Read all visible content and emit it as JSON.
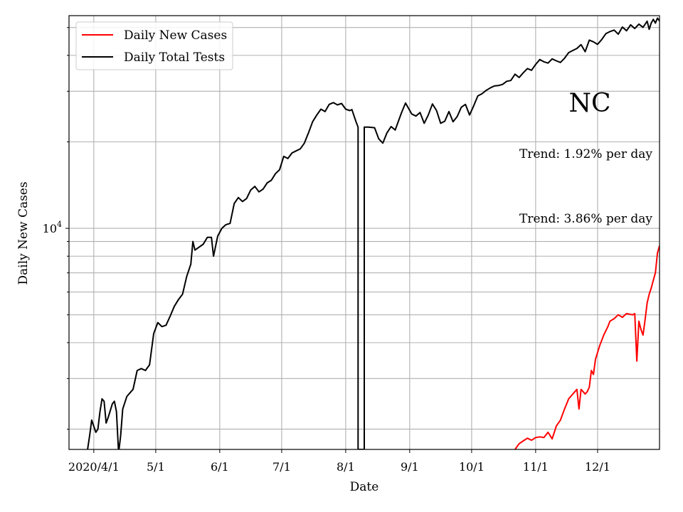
{
  "chart_data": {
    "type": "line",
    "region_label": "NC",
    "xlabel": "Date",
    "ylabel": "Daily New Cases",
    "x_tick_labels": [
      {
        "date": "2020-04-01",
        "label": "2020/4/1"
      },
      {
        "date": "2020-05-01",
        "label": "5/1"
      },
      {
        "date": "2020-06-01",
        "label": "6/1"
      },
      {
        "date": "2020-07-01",
        "label": "7/1"
      },
      {
        "date": "2020-08-01",
        "label": "8/1"
      },
      {
        "date": "2020-09-01",
        "label": "9/1"
      },
      {
        "date": "2020-10-01",
        "label": "10/1"
      },
      {
        "date": "2020-11-01",
        "label": "11/1"
      },
      {
        "date": "2020-12-01",
        "label": "12/1"
      }
    ],
    "xlim": [
      "2020-03-20",
      "2020-12-31"
    ],
    "y_scale": "log",
    "ylim": [
      1700,
      55000
    ],
    "y_major_tick": {
      "value": 10000,
      "label_base": "10",
      "label_exp": "4"
    },
    "grid": true,
    "legend": {
      "location": "top-left",
      "entries": [
        "Daily New Cases",
        "Daily Total Tests"
      ]
    },
    "annotations": [
      "Trend: 1.92% per day",
      "Trend: 3.86% per day"
    ],
    "series": [
      {
        "name": "Daily New Cases",
        "color": "#ff0000",
        "points": [
          [
            "2020-10-22",
            1700
          ],
          [
            "2020-10-24",
            1780
          ],
          [
            "2020-10-26",
            1820
          ],
          [
            "2020-10-28",
            1860
          ],
          [
            "2020-10-30",
            1830
          ],
          [
            "2020-11-01",
            1870
          ],
          [
            "2020-11-03",
            1880
          ],
          [
            "2020-11-05",
            1870
          ],
          [
            "2020-11-07",
            1950
          ],
          [
            "2020-11-09",
            1850
          ],
          [
            "2020-11-11",
            2050
          ],
          [
            "2020-11-13",
            2150
          ],
          [
            "2020-11-15",
            2350
          ],
          [
            "2020-11-17",
            2550
          ],
          [
            "2020-11-19",
            2650
          ],
          [
            "2020-11-21",
            2750
          ],
          [
            "2020-11-22",
            2350
          ],
          [
            "2020-11-23",
            2750
          ],
          [
            "2020-11-25",
            2650
          ],
          [
            "2020-11-26",
            2700
          ],
          [
            "2020-11-27",
            2800
          ],
          [
            "2020-11-28",
            3200
          ],
          [
            "2020-11-29",
            3100
          ],
          [
            "2020-11-30",
            3500
          ],
          [
            "2020-12-02",
            3900
          ],
          [
            "2020-12-04",
            4250
          ],
          [
            "2020-12-06",
            4550
          ],
          [
            "2020-12-07",
            4750
          ],
          [
            "2020-12-09",
            4850
          ],
          [
            "2020-12-11",
            5000
          ],
          [
            "2020-12-13",
            4900
          ],
          [
            "2020-12-15",
            5050
          ],
          [
            "2020-12-18",
            5000
          ],
          [
            "2020-12-19",
            5050
          ],
          [
            "2020-12-20",
            3450
          ],
          [
            "2020-12-21",
            4750
          ],
          [
            "2020-12-22",
            4450
          ],
          [
            "2020-12-23",
            4250
          ],
          [
            "2020-12-24",
            4800
          ],
          [
            "2020-12-25",
            5500
          ],
          [
            "2020-12-26",
            5900
          ],
          [
            "2020-12-27",
            6200
          ],
          [
            "2020-12-28",
            6600
          ],
          [
            "2020-12-29",
            7000
          ],
          [
            "2020-12-30",
            8200
          ],
          [
            "2020-12-31",
            8700
          ]
        ]
      },
      {
        "name": "Daily Total Tests",
        "color": "#000000",
        "points": [
          [
            "2020-03-29",
            1700
          ],
          [
            "2020-03-30",
            1900
          ],
          [
            "2020-03-31",
            2150
          ],
          [
            "2020-04-02",
            1950
          ],
          [
            "2020-04-03",
            2000
          ],
          [
            "2020-04-04",
            2300
          ],
          [
            "2020-04-05",
            2550
          ],
          [
            "2020-04-06",
            2500
          ],
          [
            "2020-04-07",
            2100
          ],
          [
            "2020-04-08",
            2200
          ],
          [
            "2020-04-10",
            2450
          ],
          [
            "2020-04-11",
            2500
          ],
          [
            "2020-04-12",
            2300
          ],
          [
            "2020-04-13",
            1650
          ],
          [
            "2020-04-14",
            1900
          ],
          [
            "2020-04-15",
            2350
          ],
          [
            "2020-04-17",
            2600
          ],
          [
            "2020-04-19",
            2700
          ],
          [
            "2020-04-20",
            2750
          ],
          [
            "2020-04-22",
            3200
          ],
          [
            "2020-04-24",
            3250
          ],
          [
            "2020-04-26",
            3200
          ],
          [
            "2020-04-28",
            3350
          ],
          [
            "2020-04-30",
            4300
          ],
          [
            "2020-05-02",
            4700
          ],
          [
            "2020-05-04",
            4550
          ],
          [
            "2020-05-06",
            4600
          ],
          [
            "2020-05-08",
            4950
          ],
          [
            "2020-05-10",
            5350
          ],
          [
            "2020-05-12",
            5650
          ],
          [
            "2020-05-14",
            5900
          ],
          [
            "2020-05-16",
            6800
          ],
          [
            "2020-05-18",
            7500
          ],
          [
            "2020-05-19",
            9000
          ],
          [
            "2020-05-20",
            8400
          ],
          [
            "2020-05-22",
            8600
          ],
          [
            "2020-05-24",
            8800
          ],
          [
            "2020-05-26",
            9300
          ],
          [
            "2020-05-28",
            9300
          ],
          [
            "2020-05-29",
            8000
          ],
          [
            "2020-05-31",
            9400
          ],
          [
            "2020-06-02",
            10000
          ],
          [
            "2020-06-04",
            10300
          ],
          [
            "2020-06-06",
            10400
          ],
          [
            "2020-06-08",
            12200
          ],
          [
            "2020-06-10",
            12800
          ],
          [
            "2020-06-12",
            12400
          ],
          [
            "2020-06-14",
            12700
          ],
          [
            "2020-06-16",
            13600
          ],
          [
            "2020-06-18",
            14000
          ],
          [
            "2020-06-20",
            13400
          ],
          [
            "2020-06-22",
            13700
          ],
          [
            "2020-06-24",
            14400
          ],
          [
            "2020-06-26",
            14700
          ],
          [
            "2020-06-28",
            15500
          ],
          [
            "2020-06-30",
            16000
          ],
          [
            "2020-07-02",
            17800
          ],
          [
            "2020-07-04",
            17500
          ],
          [
            "2020-07-06",
            18300
          ],
          [
            "2020-07-08",
            18600
          ],
          [
            "2020-07-10",
            18900
          ],
          [
            "2020-07-12",
            19800
          ],
          [
            "2020-07-14",
            21500
          ],
          [
            "2020-07-16",
            23500
          ],
          [
            "2020-07-18",
            24800
          ],
          [
            "2020-07-20",
            26000
          ],
          [
            "2020-07-22",
            25500
          ],
          [
            "2020-07-24",
            27000
          ],
          [
            "2020-07-26",
            27400
          ],
          [
            "2020-07-28",
            26900
          ],
          [
            "2020-07-30",
            27200
          ],
          [
            "2020-08-01",
            26000
          ],
          [
            "2020-08-03",
            25700
          ],
          [
            "2020-08-04",
            25900
          ],
          [
            "2020-08-06",
            23500
          ],
          [
            "2020-08-07",
            22500
          ],
          [
            "2020-08-07",
            1700
          ],
          [
            "2020-08-10",
            1700
          ],
          [
            "2020-08-10",
            22500
          ],
          [
            "2020-08-12",
            22500
          ],
          [
            "2020-08-15",
            22400
          ],
          [
            "2020-08-17",
            20500
          ],
          [
            "2020-08-19",
            19800
          ],
          [
            "2020-08-21",
            21500
          ],
          [
            "2020-08-23",
            22600
          ],
          [
            "2020-08-25",
            22000
          ],
          [
            "2020-08-28",
            25200
          ],
          [
            "2020-08-30",
            27300
          ],
          [
            "2020-09-02",
            25000
          ],
          [
            "2020-09-04",
            24600
          ],
          [
            "2020-09-06",
            25300
          ],
          [
            "2020-09-08",
            23200
          ],
          [
            "2020-09-10",
            24800
          ],
          [
            "2020-09-12",
            27100
          ],
          [
            "2020-09-14",
            25700
          ],
          [
            "2020-09-16",
            23200
          ],
          [
            "2020-09-18",
            23600
          ],
          [
            "2020-09-20",
            25500
          ],
          [
            "2020-09-22",
            23500
          ],
          [
            "2020-09-24",
            24500
          ],
          [
            "2020-09-26",
            26400
          ],
          [
            "2020-09-28",
            27000
          ],
          [
            "2020-09-30",
            24800
          ],
          [
            "2020-10-02",
            26700
          ],
          [
            "2020-10-04",
            28900
          ],
          [
            "2020-10-06",
            29400
          ],
          [
            "2020-10-08",
            30200
          ],
          [
            "2020-10-10",
            30800
          ],
          [
            "2020-10-12",
            31300
          ],
          [
            "2020-10-14",
            31400
          ],
          [
            "2020-10-16",
            31700
          ],
          [
            "2020-10-18",
            32500
          ],
          [
            "2020-10-20",
            32700
          ],
          [
            "2020-10-22",
            34400
          ],
          [
            "2020-10-24",
            33500
          ],
          [
            "2020-10-26",
            34800
          ],
          [
            "2020-10-28",
            36000
          ],
          [
            "2020-10-30",
            35500
          ],
          [
            "2020-11-01",
            37200
          ],
          [
            "2020-11-03",
            38700
          ],
          [
            "2020-11-05",
            38000
          ],
          [
            "2020-11-07",
            37600
          ],
          [
            "2020-11-09",
            38900
          ],
          [
            "2020-11-11",
            38300
          ],
          [
            "2020-11-13",
            37800
          ],
          [
            "2020-11-15",
            39100
          ],
          [
            "2020-11-17",
            40900
          ],
          [
            "2020-11-19",
            41600
          ],
          [
            "2020-11-21",
            42300
          ],
          [
            "2020-11-23",
            43600
          ],
          [
            "2020-11-25",
            41200
          ],
          [
            "2020-11-27",
            45200
          ],
          [
            "2020-11-29",
            44600
          ],
          [
            "2020-12-01",
            43700
          ],
          [
            "2020-12-03",
            45400
          ],
          [
            "2020-12-05",
            47600
          ],
          [
            "2020-12-07",
            48400
          ],
          [
            "2020-12-09",
            49000
          ],
          [
            "2020-12-11",
            47400
          ],
          [
            "2020-12-13",
            50200
          ],
          [
            "2020-12-15",
            48700
          ],
          [
            "2020-12-17",
            51100
          ],
          [
            "2020-12-19",
            49600
          ],
          [
            "2020-12-21",
            51400
          ],
          [
            "2020-12-23",
            50100
          ],
          [
            "2020-12-25",
            52600
          ],
          [
            "2020-12-26",
            49300
          ],
          [
            "2020-12-27",
            51900
          ],
          [
            "2020-12-28",
            53400
          ],
          [
            "2020-12-29",
            51800
          ],
          [
            "2020-12-30",
            53900
          ],
          [
            "2020-12-31",
            52700
          ]
        ]
      }
    ]
  }
}
